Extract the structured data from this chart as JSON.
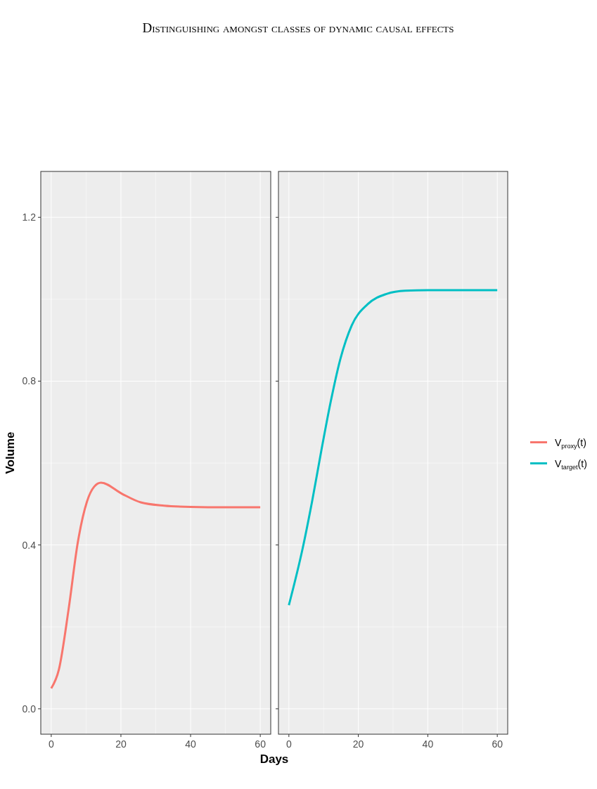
{
  "chart_data": [
    {
      "type": "line",
      "title": "Distinguishing amongst classes of dynamic causal effects",
      "xlabel": "Days",
      "ylabel": "Volume",
      "xlim": [
        -3,
        63
      ],
      "ylim": [
        -0.062,
        1.312
      ],
      "xticks": [
        0,
        20,
        40,
        60
      ],
      "yticks": [
        {
          "value": 0,
          "label": "0.0"
        },
        0.4,
        0.8,
        1.2
      ],
      "grid": true,
      "legend": "right",
      "series": [
        {
          "name": "V$_{proxy}$(t)",
          "color": "#f8766d",
          "x": [
            0,
            2.2,
            5.0,
            7.6,
            10.3,
            12.3,
            14.3,
            20.3,
            25.7,
            32.4,
            40,
            50,
            60
          ],
          "values": [
            0.05,
            0.096,
            0.244,
            0.405,
            0.507,
            0.542,
            0.552,
            0.525,
            0.504,
            0.496,
            0.493,
            0.492,
            0.492
          ]
        }
      ]
    },
    {
      "type": "line",
      "xlim": [
        -3,
        63
      ],
      "ylim": [
        -0.062,
        1.312
      ],
      "xticks": [
        0,
        20,
        40,
        60
      ],
      "yticks": [
        0,
        0.4,
        0.8,
        1.2
      ],
      "grid": true,
      "legend": "right",
      "tick_labels": "x",
      "series": [
        {
          "name": "V$_{target}$(t)",
          "color": "#00bfc4",
          "x": [
            0,
            4.0,
            6.7,
            9.4,
            12.0,
            14.7,
            18.1,
            22.7,
            28.1,
            33.5,
            40,
            50,
            60
          ],
          "values": [
            0.253,
            0.393,
            0.507,
            0.633,
            0.748,
            0.85,
            0.936,
            0.988,
            1.013,
            1.021,
            1.022,
            1.022,
            1.022
          ]
        }
      ]
    }
  ]
}
